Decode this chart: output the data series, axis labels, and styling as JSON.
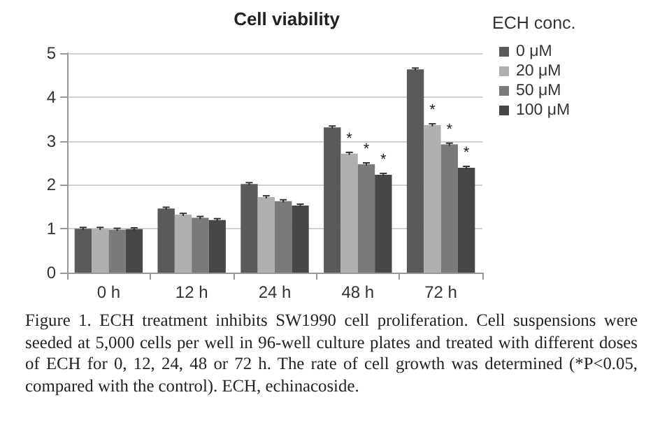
{
  "chart_data": {
    "type": "bar",
    "title": "Cell viability",
    "legend_title": "ECH conc.",
    "categories": [
      "0 h",
      "12 h",
      "24 h",
      "48 h",
      "72 h"
    ],
    "series": [
      {
        "name": "0 μM",
        "color": "#5a5a5a",
        "values": [
          1.0,
          1.46,
          2.02,
          3.31,
          4.63
        ],
        "errors": [
          0.03,
          0.03,
          0.03,
          0.03,
          0.03
        ]
      },
      {
        "name": "20 μM",
        "color": "#b0b0b0",
        "values": [
          1.0,
          1.32,
          1.72,
          2.71,
          3.36
        ],
        "errors": [
          0.03,
          0.03,
          0.03,
          0.03,
          0.03
        ],
        "value_labels": [
          null,
          null,
          null,
          "*",
          "*"
        ]
      },
      {
        "name": "50 μM",
        "color": "#7a7a7a",
        "values": [
          0.98,
          1.25,
          1.63,
          2.47,
          2.92
        ],
        "errors": [
          0.03,
          0.03,
          0.03,
          0.03,
          0.03
        ],
        "value_labels": [
          null,
          null,
          null,
          "*",
          "*"
        ]
      },
      {
        "name": "100 μM",
        "color": "#474747",
        "values": [
          0.99,
          1.2,
          1.53,
          2.23,
          2.39
        ],
        "errors": [
          0.03,
          0.03,
          0.03,
          0.03,
          0.03
        ],
        "value_labels": [
          null,
          null,
          null,
          "*",
          "*"
        ]
      }
    ],
    "ylim": [
      0,
      5
    ],
    "yticks": [
      0,
      1,
      2,
      3,
      4,
      5
    ],
    "grid": "y",
    "legend": "right",
    "annotations": [
      "Figure 1. ECH treatment inhibits SW1990 cell proliferation. Cell suspensions were seeded at 5,000 cells per well in 96-well culture plates and treated with different doses of ECH for 0, 12, 24, 48 or 72 h. The rate of cell growth was determined (*P<0.05, compared with the control). ECH, echinacoside."
    ]
  }
}
